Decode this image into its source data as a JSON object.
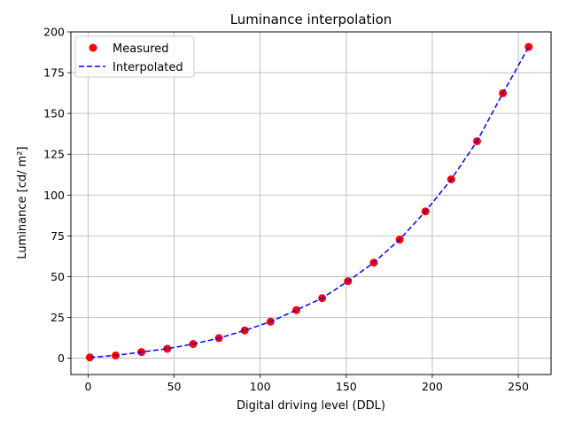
{
  "chart_data": {
    "type": "scatter",
    "title": "Luminance interpolation",
    "xlabel": "Digital driving level (DDL)",
    "ylabel": "Luminance [cd/ m²]",
    "xlim": [
      -10,
      269
    ],
    "ylim": [
      -10,
      200
    ],
    "xticks": [
      0,
      50,
      100,
      150,
      200,
      250
    ],
    "yticks": [
      0,
      25,
      50,
      75,
      100,
      125,
      150,
      175,
      200
    ],
    "grid": true,
    "legend_position": "top-left",
    "series": [
      {
        "name": "Measured",
        "style": "markers",
        "color": "#ff0000",
        "x": [
          1,
          16,
          31,
          46,
          61,
          76,
          91,
          106,
          121,
          136,
          151,
          166,
          181,
          196,
          211,
          226,
          241,
          256
        ],
        "y": [
          0.5,
          1.7,
          3.8,
          5.8,
          8.7,
          12.3,
          17.0,
          22.4,
          29.5,
          36.8,
          47.2,
          58.6,
          72.7,
          90.0,
          109.6,
          133.0,
          162.4,
          190.8
        ]
      },
      {
        "name": "Interpolated",
        "style": "dashed-line",
        "color": "#0000ff",
        "x": [
          1,
          16,
          31,
          46,
          61,
          76,
          91,
          106,
          121,
          136,
          151,
          166,
          181,
          196,
          211,
          226,
          241,
          256
        ],
        "y": [
          0.5,
          1.7,
          3.8,
          5.8,
          8.7,
          12.3,
          17.0,
          22.4,
          29.5,
          36.8,
          47.2,
          58.6,
          72.7,
          90.0,
          109.6,
          133.0,
          162.4,
          190.8
        ]
      }
    ]
  }
}
